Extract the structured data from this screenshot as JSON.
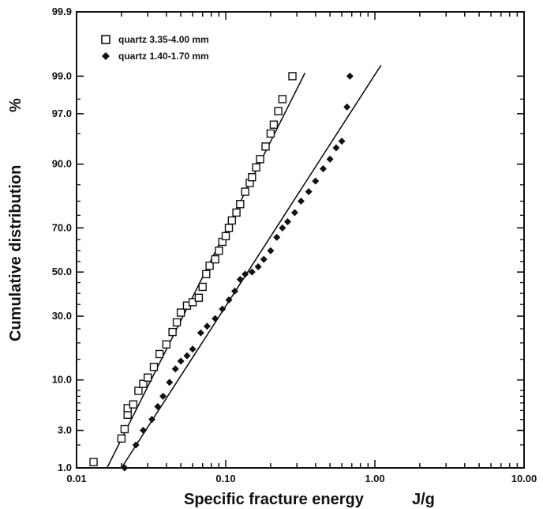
{
  "chart_data": {
    "type": "scatter",
    "xlabel": "Specific fracture energy",
    "xunit": "J/g",
    "ylabel": "Cumulative distribution",
    "yunit": "%",
    "xscale": "log",
    "yscale": "probability",
    "xlim": [
      0.01,
      10.0
    ],
    "ylim": [
      1.0,
      99.9
    ],
    "x_ticks": [
      {
        "value": 0.01,
        "label": "0.01"
      },
      {
        "value": 0.1,
        "label": "0.10"
      },
      {
        "value": 1.0,
        "label": "1.00"
      },
      {
        "value": 10.0,
        "label": "10.00"
      }
    ],
    "y_ticks": [
      {
        "value": 1.0,
        "label": "1.0"
      },
      {
        "value": 3.0,
        "label": "3.0"
      },
      {
        "value": 10.0,
        "label": "10.0"
      },
      {
        "value": 30.0,
        "label": "30.0"
      },
      {
        "value": 50.0,
        "label": "50.0"
      },
      {
        "value": 70.0,
        "label": "70.0"
      },
      {
        "value": 90.0,
        "label": "90.0"
      },
      {
        "value": 97.0,
        "label": "97.0"
      },
      {
        "value": 99.0,
        "label": "99.0"
      },
      {
        "value": 99.9,
        "label": "99.9"
      }
    ],
    "grid": false,
    "legend_position": "top-left",
    "series": [
      {
        "name": "quartz 3.35-4.00 mm",
        "marker": "open-square",
        "x": [
          0.013,
          0.02,
          0.021,
          0.022,
          0.022,
          0.024,
          0.026,
          0.028,
          0.03,
          0.033,
          0.036,
          0.04,
          0.044,
          0.047,
          0.05,
          0.055,
          0.06,
          0.066,
          0.07,
          0.074,
          0.078,
          0.085,
          0.09,
          0.095,
          0.1,
          0.105,
          0.11,
          0.118,
          0.125,
          0.135,
          0.145,
          0.15,
          0.16,
          0.17,
          0.185,
          0.2,
          0.21,
          0.225,
          0.24,
          0.28
        ],
        "y": [
          1.2,
          2.4,
          3.1,
          4.5,
          5.3,
          5.8,
          7.9,
          9.2,
          10.5,
          13.0,
          16.5,
          19.5,
          23.8,
          27.5,
          31.5,
          34.5,
          36.0,
          38.0,
          43.0,
          49.0,
          53.0,
          56.0,
          60.0,
          64.0,
          66.5,
          70.0,
          73.0,
          76.0,
          79.0,
          83.0,
          85.5,
          87.0,
          89.3,
          91.0,
          93.2,
          95.0,
          96.0,
          97.2,
          98.0,
          99.0
        ],
        "fit": {
          "x": [
            0.016,
            0.34
          ],
          "y": [
            1.0,
            99.1
          ]
        }
      },
      {
        "name": "quartz 1.40-1.70 mm",
        "marker": "filled-diamond",
        "x": [
          0.021,
          0.025,
          0.028,
          0.032,
          0.035,
          0.038,
          0.042,
          0.046,
          0.05,
          0.055,
          0.06,
          0.068,
          0.075,
          0.085,
          0.095,
          0.105,
          0.115,
          0.125,
          0.135,
          0.15,
          0.165,
          0.18,
          0.2,
          0.22,
          0.24,
          0.26,
          0.29,
          0.32,
          0.36,
          0.4,
          0.45,
          0.5,
          0.55,
          0.6,
          0.65,
          0.68
        ],
        "y": [
          1.0,
          2.0,
          3.0,
          4.0,
          5.5,
          7.0,
          9.5,
          12.5,
          14.5,
          16.0,
          18.0,
          23.5,
          26.0,
          29.0,
          33.0,
          37.0,
          41.0,
          46.5,
          49.0,
          50.0,
          52.5,
          56.0,
          60.0,
          66.0,
          70.0,
          72.5,
          76.0,
          80.0,
          83.0,
          86.0,
          89.0,
          91.0,
          93.0,
          94.0,
          97.5,
          99.0
        ],
        "fit": {
          "x": [
            0.02,
            1.1
          ],
          "y": [
            1.0,
            99.3
          ]
        }
      }
    ]
  }
}
